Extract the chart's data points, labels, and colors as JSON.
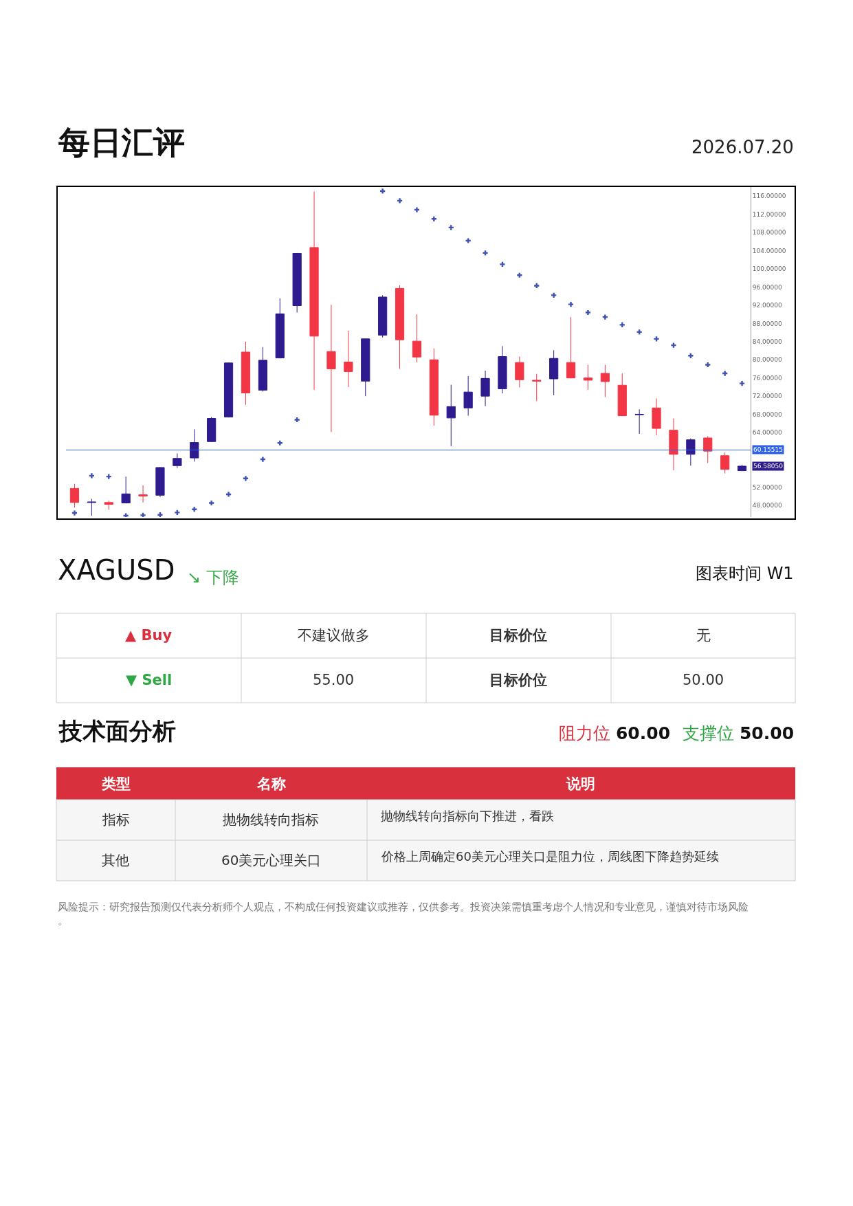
{
  "chart_data": {
    "type": "candlestick",
    "title": "每日汇评",
    "subtitle": "2026.07.20",
    "categories": [
      null,
      null,
      null,
      null,
      null,
      null,
      null,
      null,
      null,
      null,
      null,
      null,
      null,
      null,
      null,
      null,
      null,
      null,
      null,
      null,
      null,
      null,
      null,
      null,
      null,
      null,
      null,
      null,
      null,
      null,
      null,
      null,
      null,
      null,
      null,
      null,
      null,
      null,
      null,
      null
    ],
    "ohlc": [
      [
        51.7,
        52.7,
        47.5,
        48.6
      ],
      [
        48.6,
        49.4,
        45.7,
        48.7
      ],
      [
        48.6,
        49.0,
        47.0,
        48.2
      ],
      [
        48.5,
        54.3,
        48.4,
        50.5
      ],
      [
        50.3,
        52.4,
        48.6,
        50.0
      ],
      [
        50.2,
        56.4,
        49.8,
        56.3
      ],
      [
        56.7,
        59.4,
        56.2,
        58.3
      ],
      [
        58.4,
        64.7,
        57.6,
        61.8
      ],
      [
        62.0,
        67.4,
        61.9,
        67.1
      ],
      [
        67.4,
        79.4,
        67.3,
        79.3
      ],
      [
        81.7,
        84.0,
        70.1,
        72.7
      ],
      [
        73.3,
        82.8,
        73.0,
        79.9
      ],
      [
        80.4,
        93.5,
        80.3,
        90.1
      ],
      [
        91.9,
        103.5,
        90.4,
        103.4
      ],
      [
        104.7,
        117.0,
        73.4,
        85.2
      ],
      [
        81.8,
        92.1,
        64.1,
        78.0
      ],
      [
        79.5,
        86.4,
        74.0,
        77.4
      ],
      [
        75.3,
        84.7,
        72.0,
        84.6
      ],
      [
        85.4,
        94.2,
        84.9,
        93.8
      ],
      [
        95.7,
        96.4,
        78.0,
        84.4
      ],
      [
        84.1,
        90.0,
        79.4,
        80.6
      ],
      [
        80.0,
        82.5,
        65.5,
        67.8
      ],
      [
        67.2,
        74.5,
        61.0,
        69.7
      ],
      [
        69.4,
        76.4,
        67.7,
        72.9
      ],
      [
        72.0,
        77.6,
        69.8,
        75.9
      ],
      [
        73.6,
        83.0,
        72.6,
        80.7
      ],
      [
        79.4,
        80.7,
        73.9,
        75.6
      ],
      [
        75.5,
        76.9,
        70.9,
        75.3
      ],
      [
        75.8,
        82.1,
        72.2,
        80.3
      ],
      [
        79.4,
        89.4,
        75.9,
        76.0
      ],
      [
        76.0,
        78.9,
        73.4,
        75.5
      ],
      [
        77.0,
        78.9,
        71.8,
        75.2
      ],
      [
        74.4,
        77.0,
        67.6,
        67.7
      ],
      [
        67.9,
        69.1,
        63.7,
        68.0
      ],
      [
        69.4,
        71.5,
        63.4,
        64.9
      ],
      [
        64.5,
        67.1,
        55.7,
        59.2
      ],
      [
        59.2,
        62.7,
        56.7,
        62.4
      ],
      [
        62.8,
        63.2,
        57.3,
        59.9
      ],
      [
        58.9,
        59.6,
        55.0,
        55.9
      ],
      [
        55.6,
        56.9,
        55.5,
        56.6
      ]
    ],
    "colors": [
      "#f23645",
      "#2d1b8f",
      "#f23645",
      "#2d1b8f",
      "#f23645",
      "#2d1b8f",
      "#2d1b8f",
      "#2d1b8f",
      "#2d1b8f",
      "#2d1b8f",
      "#f23645",
      "#2d1b8f",
      "#2d1b8f",
      "#2d1b8f",
      "#f23645",
      "#f23645",
      "#f23645",
      "#2d1b8f",
      "#2d1b8f",
      "#f23645",
      "#f23645",
      "#f23645",
      "#2d1b8f",
      "#2d1b8f",
      "#2d1b8f",
      "#2d1b8f",
      "#f23645",
      "#f23645",
      "#2d1b8f",
      "#f23645",
      "#f23645",
      "#f23645",
      "#f23645",
      "#2d1b8f",
      "#f23645",
      "#f23645",
      "#2d1b8f",
      "#f23645",
      "#f23645",
      "#2d1b8f"
    ],
    "series": [
      {
        "type": "scatter",
        "marker": "cross",
        "color": "#3f51b5",
        "values": [
          46.3,
          54.5,
          54.3,
          45.7,
          45.8,
          45.9,
          46.4,
          47.1,
          48.5,
          50.4,
          53.9,
          58.1,
          61.7,
          66.8,
          null,
          null,
          null,
          null,
          117.1,
          115.0,
          113.0,
          111.0,
          109.1,
          106.2,
          103.5,
          101.0,
          98.6,
          96.3,
          94.2,
          92.2,
          90.4,
          89.4,
          87.7,
          86.1,
          84.6,
          83.2,
          80.9,
          78.9,
          77.0,
          74.8
        ]
      }
    ],
    "ylim": [
      45.4,
      118
    ],
    "yticks": [
      {
        "value": 48,
        "label": "48.00000"
      },
      {
        "value": 52,
        "label": "52.00000"
      },
      {
        "value": 64,
        "label": "64.00000"
      },
      {
        "value": 68,
        "label": "68.00000"
      },
      {
        "value": 72,
        "label": "72.00000"
      },
      {
        "value": 76,
        "label": "76.00000"
      },
      {
        "value": 80,
        "label": "80.00000"
      },
      {
        "value": 84,
        "label": "84.00000"
      },
      {
        "value": 88,
        "label": "88.00000"
      },
      {
        "value": 92,
        "label": "92.00000"
      },
      {
        "value": 96,
        "label": "96.00000"
      },
      {
        "value": 100,
        "label": "100.00000"
      },
      {
        "value": 104,
        "label": "104.00000"
      },
      {
        "value": 108,
        "label": "108.00000"
      },
      {
        "value": 112,
        "label": "112.00000"
      },
      {
        "value": 116,
        "label": "116.00000"
      }
    ],
    "ref_lines": [
      {
        "axis": "y",
        "value": 60.15515,
        "label": "60.15515",
        "color": "#3062e8"
      }
    ],
    "annotations": [
      "XAGUSD",
      "↘ 下降",
      "图表时间 W1",
      "▲ Buy",
      "不建议做多",
      "目标价位",
      "无",
      "▼ Sell",
      "55.00",
      "目标价位",
      "50.00",
      "技术面分析",
      "阻力位 60.00",
      "支撑位 50.00",
      "类型",
      "名称",
      "说明",
      "指标",
      "抛物线转向指标",
      "抛物线转向指标向下推进，看跌",
      "其他",
      "60美元心理关口",
      "价格上周确定60美元心理关口是阻力位，周线图下降趋势延续",
      "风险提示：研究报告预测仅代表分析师个人观点，不构成任何投资建议或推荐，仅供参考。投资决策需慎重考虑个人情况和专业意见，谨慎对待市场风险。",
      "56.58050"
    ]
  }
}
